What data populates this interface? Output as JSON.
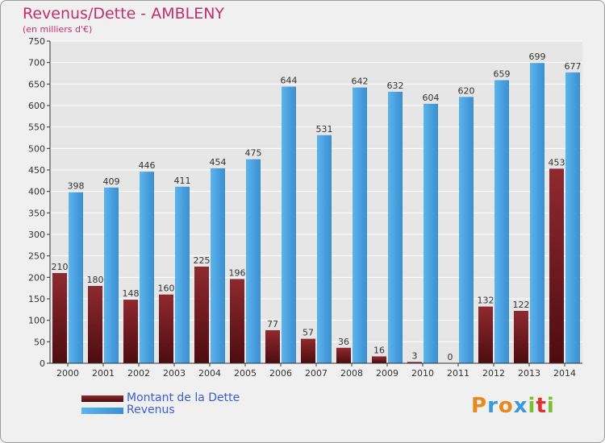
{
  "header": {
    "title": "Revenus/Dette - AMBLENY",
    "subtitle": "(en milliers d'€)"
  },
  "logo": {
    "text": "Proxiti",
    "colors": [
      "#e8891e",
      "#3a9ad9",
      "#e8891e",
      "#3a9ad9",
      "#7bbf2e",
      "#e03030",
      "#7bbf2e"
    ]
  },
  "legend": [
    {
      "label": "Montant de la Dette",
      "color": "#7a1e22"
    },
    {
      "label": "Revenus",
      "color": "#4aa3e2"
    }
  ],
  "colors": {
    "dette": "#7a1e22",
    "revenus": "#4aa3e2",
    "grid": "#ffffff",
    "axis": "#333333"
  },
  "chart_data": {
    "type": "bar",
    "title": "Revenus/Dette - AMBLENY",
    "subtitle": "(en milliers d'€)",
    "categories": [
      "2000",
      "2001",
      "2002",
      "2003",
      "2004",
      "2005",
      "2006",
      "2007",
      "2008",
      "2009",
      "2010",
      "2011",
      "2012",
      "2013",
      "2014"
    ],
    "series": [
      {
        "name": "Montant de la Dette",
        "values": [
          210,
          180,
          148,
          160,
          225,
          196,
          77,
          57,
          36,
          16,
          3,
          0,
          132,
          122,
          453
        ]
      },
      {
        "name": "Revenus",
        "values": [
          398,
          409,
          446,
          411,
          454,
          475,
          644,
          531,
          642,
          632,
          604,
          620,
          659,
          699,
          677
        ]
      }
    ],
    "ylim": [
      0,
      750
    ],
    "yticks": [
      0,
      50,
      100,
      150,
      200,
      250,
      300,
      350,
      400,
      450,
      500,
      550,
      600,
      650,
      700,
      750
    ],
    "grid": true,
    "legend_position": "bottom-left"
  }
}
